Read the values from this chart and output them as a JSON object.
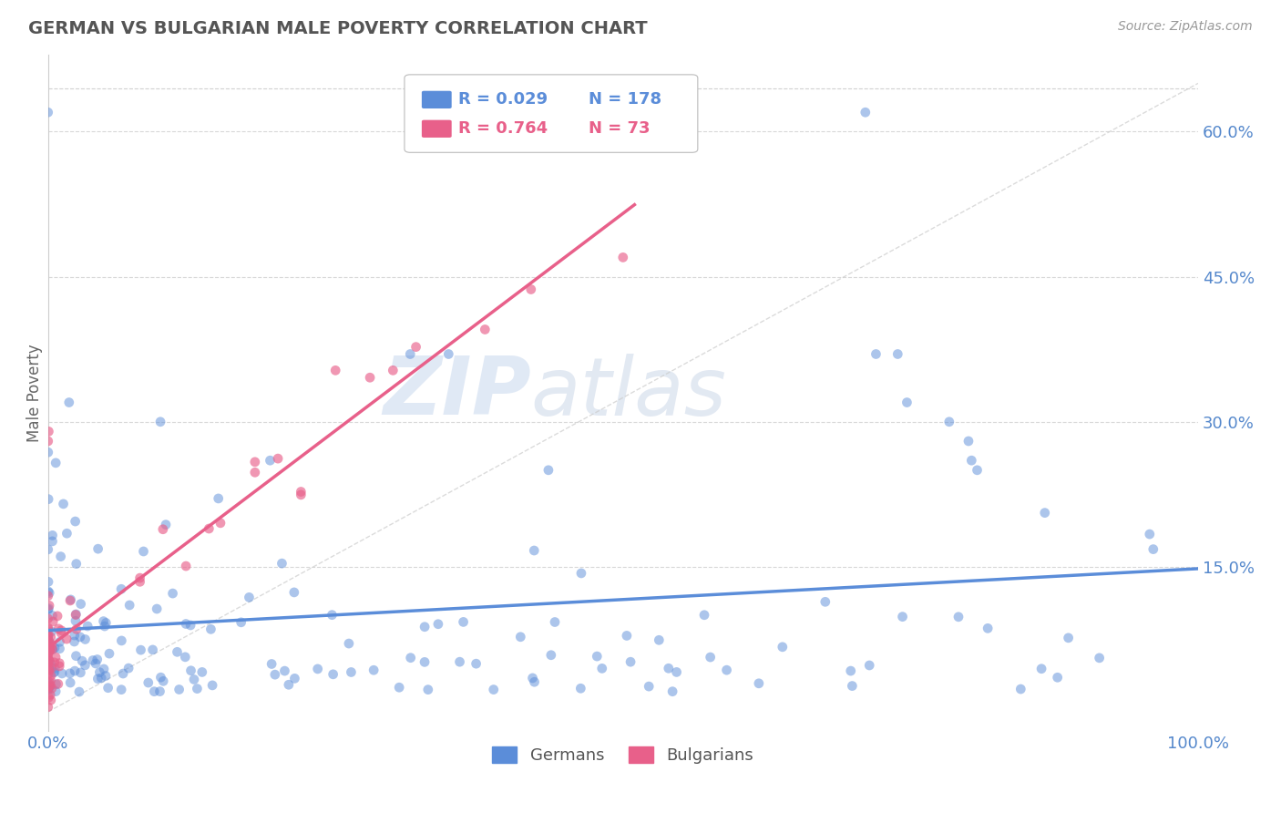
{
  "title": "GERMAN VS BULGARIAN MALE POVERTY CORRELATION CHART",
  "source_text": "Source: ZipAtlas.com",
  "ylabel": "Male Poverty",
  "xlim": [
    0,
    1
  ],
  "ylim": [
    -0.02,
    0.68
  ],
  "xticks": [
    0.0,
    0.25,
    0.5,
    0.75,
    1.0
  ],
  "xtick_labels": [
    "0.0%",
    "",
    "",
    "",
    "100.0%"
  ],
  "yticks": [
    0.0,
    0.15,
    0.3,
    0.45,
    0.6
  ],
  "ytick_labels": [
    "",
    "15.0%",
    "30.0%",
    "45.0%",
    "60.0%"
  ],
  "german_color": "#5b8dd9",
  "bulgarian_color": "#e8608a",
  "german_N": 178,
  "bulgarian_N": 73,
  "legend_R_german": "R = 0.029",
  "legend_N_german": "N = 178",
  "legend_R_bulgarian": "R = 0.764",
  "legend_N_bulgarian": "N = 73",
  "watermark_zip": "ZIP",
  "watermark_atlas": "atlas",
  "background_color": "#ffffff",
  "grid_color": "#cccccc",
  "title_color": "#555555",
  "axis_label_color": "#666666",
  "tick_color": "#5588cc"
}
